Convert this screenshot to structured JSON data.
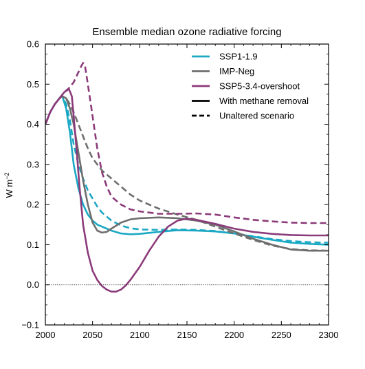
{
  "chart_data": {
    "type": "line",
    "title": "Ensemble median ozone radiative forcing",
    "xlabel": "",
    "ylabel": "W m",
    "ylabel_superscript": "−2",
    "xlim": [
      2000,
      2300
    ],
    "ylim": [
      -0.1,
      0.6
    ],
    "x_ticks": [
      2000,
      2050,
      2100,
      2150,
      2200,
      2250,
      2300
    ],
    "x_tick_labels": [
      "2000",
      "2050",
      "2100",
      "2150",
      "2200",
      "2250",
      "2300"
    ],
    "y_ticks": [
      -0.1,
      0.0,
      0.1,
      0.2,
      0.3,
      0.4,
      0.5,
      0.6
    ],
    "y_tick_labels": [
      "−0.1",
      "0.0",
      "0.1",
      "0.2",
      "0.3",
      "0.4",
      "0.5",
      "0.6"
    ],
    "zero_line": true,
    "grid": false,
    "legend_position": "top-right",
    "legend": [
      {
        "label": "SSP1-1.9",
        "color": "#1aa8c4",
        "style": "solid"
      },
      {
        "label": "IMP-Neg",
        "color": "#6e6e6e",
        "style": "solid"
      },
      {
        "label": "SSP5-3.4-overshoot",
        "color": "#8b3a7a",
        "style": "solid"
      },
      {
        "label": "With methane removal",
        "color": "#000000",
        "style": "solid"
      },
      {
        "label": "Unaltered scenario",
        "color": "#000000",
        "style": "dashed"
      }
    ],
    "series": [
      {
        "name": "SSP1-1.9",
        "variant": "With methane removal",
        "color": "#1aa8c4",
        "style": "solid",
        "x": [
          2000,
          2005,
          2010,
          2015,
          2018,
          2022,
          2026,
          2030,
          2035,
          2040,
          2045,
          2050,
          2055,
          2060,
          2070,
          2080,
          2090,
          2100,
          2120,
          2140,
          2160,
          2180,
          2200,
          2220,
          2240,
          2260,
          2280,
          2300
        ],
        "y": [
          0.4,
          0.43,
          0.45,
          0.465,
          0.47,
          0.44,
          0.38,
          0.3,
          0.24,
          0.2,
          0.175,
          0.16,
          0.15,
          0.145,
          0.135,
          0.128,
          0.126,
          0.127,
          0.132,
          0.136,
          0.135,
          0.133,
          0.128,
          0.12,
          0.112,
          0.105,
          0.102,
          0.1
        ]
      },
      {
        "name": "SSP1-1.9",
        "variant": "Unaltered scenario",
        "color": "#1aa8c4",
        "style": "dashed",
        "x": [
          2000,
          2005,
          2010,
          2015,
          2018,
          2022,
          2026,
          2030,
          2035,
          2040,
          2045,
          2050,
          2055,
          2060,
          2070,
          2080,
          2090,
          2100,
          2120,
          2140,
          2160,
          2180,
          2200,
          2220,
          2240,
          2260,
          2280,
          2300
        ],
        "y": [
          0.4,
          0.43,
          0.45,
          0.465,
          0.47,
          0.45,
          0.41,
          0.35,
          0.3,
          0.265,
          0.235,
          0.215,
          0.195,
          0.18,
          0.16,
          0.148,
          0.141,
          0.138,
          0.137,
          0.138,
          0.137,
          0.134,
          0.128,
          0.121,
          0.114,
          0.109,
          0.106,
          0.105
        ]
      },
      {
        "name": "IMP-Neg",
        "variant": "With methane removal",
        "color": "#6e6e6e",
        "style": "solid",
        "x": [
          2000,
          2005,
          2010,
          2015,
          2018,
          2022,
          2026,
          2030,
          2035,
          2040,
          2045,
          2050,
          2055,
          2060,
          2065,
          2070,
          2080,
          2090,
          2100,
          2120,
          2140,
          2160,
          2180,
          2200,
          2220,
          2240,
          2260,
          2280,
          2300
        ],
        "y": [
          0.4,
          0.43,
          0.45,
          0.465,
          0.47,
          0.465,
          0.44,
          0.4,
          0.33,
          0.26,
          0.2,
          0.155,
          0.135,
          0.13,
          0.132,
          0.14,
          0.155,
          0.163,
          0.166,
          0.168,
          0.166,
          0.16,
          0.15,
          0.133,
          0.115,
          0.1,
          0.088,
          0.085,
          0.085
        ]
      },
      {
        "name": "IMP-Neg",
        "variant": "Unaltered scenario",
        "color": "#6e6e6e",
        "style": "dashed",
        "x": [
          2000,
          2005,
          2010,
          2015,
          2018,
          2022,
          2026,
          2030,
          2035,
          2040,
          2045,
          2050,
          2060,
          2070,
          2080,
          2090,
          2100,
          2120,
          2140,
          2160,
          2180,
          2200,
          2220,
          2240,
          2260,
          2280,
          2300
        ],
        "y": [
          0.4,
          0.43,
          0.45,
          0.465,
          0.47,
          0.465,
          0.45,
          0.43,
          0.4,
          0.37,
          0.34,
          0.315,
          0.285,
          0.265,
          0.245,
          0.225,
          0.21,
          0.19,
          0.175,
          0.162,
          0.145,
          0.128,
          0.112,
          0.098,
          0.089,
          0.086,
          0.085
        ]
      },
      {
        "name": "SSP5-3.4-overshoot",
        "variant": "With methane removal",
        "color": "#8b3a7a",
        "style": "solid",
        "x": [
          2000,
          2005,
          2010,
          2015,
          2020,
          2025,
          2028,
          2030,
          2033,
          2036,
          2040,
          2045,
          2050,
          2055,
          2060,
          2065,
          2070,
          2075,
          2080,
          2085,
          2090,
          2100,
          2110,
          2120,
          2130,
          2140,
          2150,
          2160,
          2180,
          2200,
          2220,
          2240,
          2260,
          2280,
          2300
        ],
        "y": [
          0.4,
          0.43,
          0.45,
          0.465,
          0.48,
          0.488,
          0.47,
          0.42,
          0.34,
          0.25,
          0.15,
          0.08,
          0.035,
          0.012,
          -0.003,
          -0.012,
          -0.017,
          -0.017,
          -0.012,
          -0.002,
          0.012,
          0.045,
          0.085,
          0.12,
          0.145,
          0.16,
          0.165,
          0.162,
          0.152,
          0.14,
          0.132,
          0.127,
          0.124,
          0.123,
          0.123
        ]
      },
      {
        "name": "SSP5-3.4-overshoot",
        "variant": "Unaltered scenario",
        "color": "#8b3a7a",
        "style": "dashed",
        "x": [
          2000,
          2005,
          2010,
          2015,
          2020,
          2025,
          2030,
          2035,
          2038,
          2040,
          2042,
          2045,
          2050,
          2055,
          2060,
          2065,
          2070,
          2080,
          2090,
          2100,
          2120,
          2140,
          2160,
          2180,
          2200,
          2220,
          2240,
          2260,
          2280,
          2300
        ],
        "y": [
          0.4,
          0.43,
          0.45,
          0.465,
          0.48,
          0.49,
          0.505,
          0.53,
          0.545,
          0.553,
          0.545,
          0.5,
          0.42,
          0.34,
          0.28,
          0.245,
          0.22,
          0.2,
          0.188,
          0.183,
          0.177,
          0.177,
          0.178,
          0.175,
          0.168,
          0.162,
          0.158,
          0.155,
          0.154,
          0.154
        ]
      }
    ]
  }
}
